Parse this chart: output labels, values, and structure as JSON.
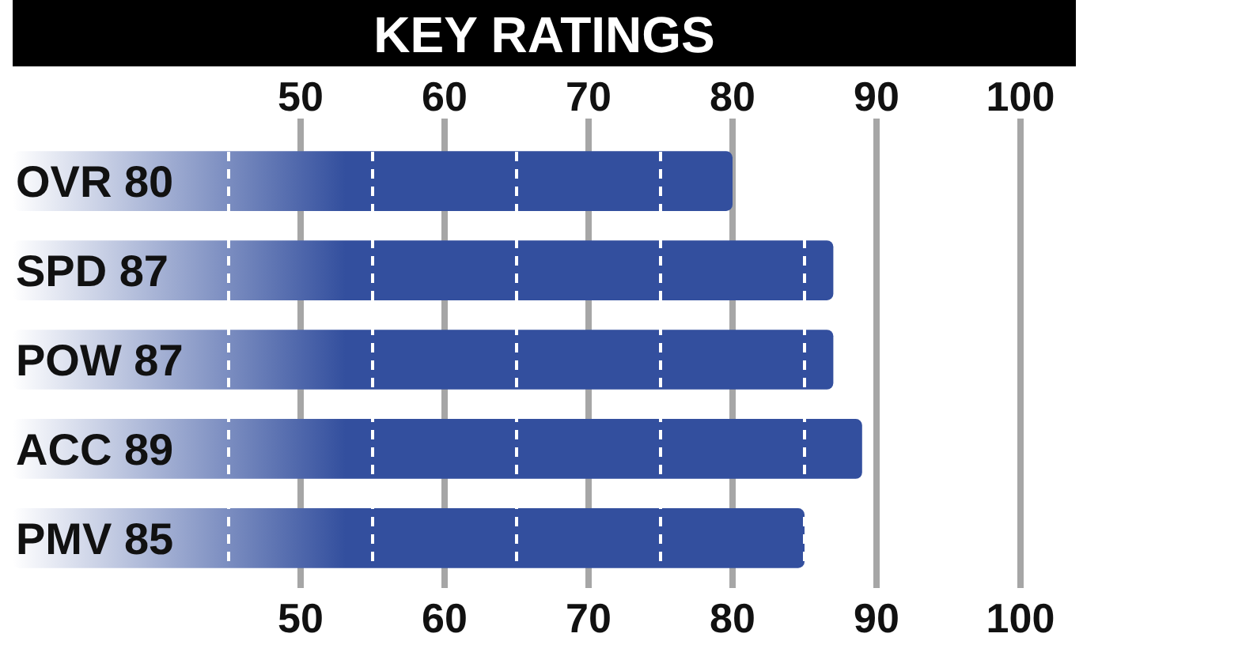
{
  "chart_data": {
    "type": "bar",
    "orientation": "horizontal",
    "title": "KEY RATINGS",
    "categories": [
      "OVR 80",
      "SPD 87",
      "POW 87",
      "ACC 89",
      "PMV 85"
    ],
    "values": [
      80,
      87,
      87,
      89,
      85
    ],
    "color": "#334f9e",
    "xlim": [
      30,
      100
    ],
    "xticks": [
      {
        "value": 45,
        "label": null
      },
      50,
      {
        "value": 55,
        "label": null
      },
      60,
      {
        "value": 65,
        "label": null
      },
      70,
      {
        "value": 75,
        "label": null
      },
      80,
      {
        "value": 85,
        "label": null
      },
      90,
      100
    ],
    "x2lim": [
      30,
      100
    ],
    "x2ticks": [
      50,
      60,
      70,
      80,
      90,
      100
    ],
    "grid": "x"
  }
}
